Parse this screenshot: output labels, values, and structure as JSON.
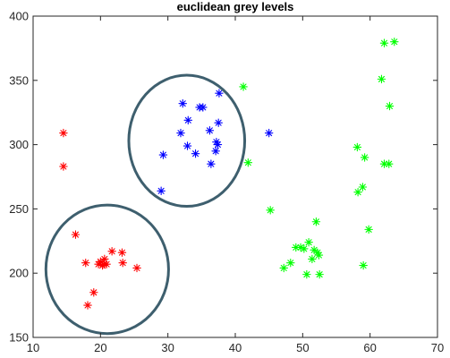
{
  "chart_data": {
    "type": "scatter",
    "title": "euclidean grey levels",
    "xlabel": "",
    "ylabel": "",
    "xlim": [
      10,
      70
    ],
    "ylim": [
      150,
      400
    ],
    "xticks": [
      10,
      20,
      30,
      40,
      50,
      60,
      70
    ],
    "yticks": [
      150,
      200,
      250,
      300,
      350,
      400
    ],
    "marker": "asterisk",
    "grid": false,
    "series": [
      {
        "color": "#ff0000",
        "x": [
          14.5,
          14.5,
          16.3,
          17.8,
          19.7,
          20.0,
          20.3,
          20.5,
          20.6,
          20.9,
          21.7,
          23.2,
          23.3,
          25.4,
          19.0,
          18.1
        ],
        "y": [
          309,
          283,
          230,
          208,
          207,
          209,
          206,
          207,
          211,
          207,
          217,
          216,
          208,
          204,
          185,
          175
        ]
      },
      {
        "color": "#0000ff",
        "x": [
          29.0,
          29.3,
          31.9,
          32.2,
          32.9,
          33.0,
          34.1,
          34.7,
          35.2,
          36.2,
          36.4,
          37.1,
          37.2,
          37.5,
          37.4,
          37.6,
          45.0
        ],
        "y": [
          264,
          292,
          309,
          332,
          299,
          319,
          293,
          329,
          329,
          311,
          285,
          295,
          302,
          317,
          300,
          340,
          309
        ]
      },
      {
        "color": "#00ff00",
        "x": [
          41.2,
          41.9,
          45.2,
          47.2,
          48.2,
          49.0,
          49.7,
          50.2,
          50.6,
          50.9,
          51.4,
          51.7,
          52.0,
          52.2,
          52.4,
          52.5,
          58.1,
          58.2,
          58.9,
          59.0,
          59.2,
          59.8,
          61.7,
          62.1,
          62.1,
          62.8,
          62.9,
          63.6
        ],
        "y": [
          345,
          286,
          249,
          204,
          208,
          220,
          220,
          219,
          199,
          224,
          211,
          218,
          240,
          216,
          214,
          199,
          298,
          263,
          267,
          206,
          290,
          234,
          351,
          379,
          285,
          285,
          330,
          380
        ]
      }
    ],
    "circles": [
      {
        "cx": 21.0,
        "cy": 203,
        "rx": 9.1,
        "ry": 50
      },
      {
        "cx": 32.8,
        "cy": 303,
        "rx": 8.6,
        "ry": 51
      }
    ]
  }
}
